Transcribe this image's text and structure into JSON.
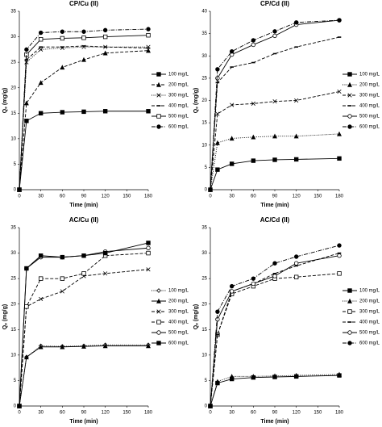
{
  "chart_data": [
    {
      "type": "line",
      "title": "CP/Cu (II)",
      "x_label": "Time (min)",
      "y_label": "Qₑ (mg/g)",
      "x": [
        0,
        10,
        30,
        60,
        90,
        120,
        180
      ],
      "xlim": [
        0,
        180
      ],
      "xticks": [
        0,
        30,
        60,
        90,
        120,
        150,
        180
      ],
      "ylim": [
        0,
        35
      ],
      "yticks": [
        0,
        5,
        10,
        15,
        20,
        25,
        30,
        35
      ],
      "legend": "right",
      "series": [
        {
          "name": "100 mg/L",
          "color": "#000000",
          "marker": "square",
          "dash": "solid",
          "values": [
            0,
            13.5,
            15,
            15.2,
            15.3,
            15.4,
            15.4
          ]
        },
        {
          "name": "200 mg/L",
          "color": "#000000",
          "marker": "triangle",
          "dash": "dashed",
          "values": [
            0,
            17,
            21,
            24,
            25.5,
            26.8,
            27.3
          ]
        },
        {
          "name": "300 mg/L",
          "color": "#000000",
          "marker": "x",
          "dash": "dotted",
          "values": [
            0,
            25,
            27.5,
            27.8,
            28,
            28,
            28
          ]
        },
        {
          "name": "400 mg/L",
          "color": "#000000",
          "marker": "dash",
          "dash": "dashed",
          "values": [
            0,
            25.5,
            28,
            28,
            28.2,
            28,
            27.8
          ]
        },
        {
          "name": "500 mg/L",
          "color": "#000000",
          "marker": "square-open",
          "dash": "solid",
          "values": [
            0,
            26.5,
            29.5,
            29.7,
            29.8,
            30,
            30.3
          ]
        },
        {
          "name": "600 mg/L",
          "color": "#000000",
          "marker": "circle-filled",
          "dash": "dashdot",
          "values": [
            0,
            27.5,
            30.8,
            31,
            31,
            31.3,
            31.5
          ]
        }
      ]
    },
    {
      "type": "line",
      "title": "CP/Cd (II)",
      "x_label": "Time (min)",
      "y_label": "Qₑ (mg/g)",
      "x": [
        0,
        10,
        30,
        60,
        90,
        120,
        180
      ],
      "xlim": [
        0,
        180
      ],
      "xticks": [
        0,
        30,
        60,
        90,
        120,
        150,
        180
      ],
      "ylim": [
        0,
        40
      ],
      "yticks": [
        0,
        5,
        10,
        15,
        20,
        25,
        30,
        35,
        40
      ],
      "legend": "right",
      "series": [
        {
          "name": "100 mg/L",
          "color": "#000000",
          "marker": "square",
          "dash": "solid",
          "values": [
            0,
            4.5,
            5.8,
            6.5,
            6.7,
            6.8,
            7
          ]
        },
        {
          "name": "200 mg/L",
          "color": "#000000",
          "marker": "triangle",
          "dash": "dotted",
          "values": [
            0,
            10.5,
            11.5,
            11.8,
            12,
            12,
            12.5
          ]
        },
        {
          "name": "300 mg/L",
          "color": "#000000",
          "marker": "x",
          "dash": "dashed",
          "values": [
            0,
            17,
            19,
            19.3,
            19.8,
            20,
            22
          ]
        },
        {
          "name": "400 mg/L",
          "color": "#000000",
          "marker": "dash",
          "dash": "dashed",
          "values": [
            0,
            24,
            27.5,
            28.5,
            30.5,
            32,
            34.2
          ]
        },
        {
          "name": "500 mg/L",
          "color": "#000000",
          "marker": "circle-open",
          "dash": "solid",
          "values": [
            0,
            25,
            30.3,
            32.5,
            34.5,
            37,
            38
          ]
        },
        {
          "name": "600 mg/L",
          "color": "#000000",
          "marker": "circle-filled",
          "dash": "dashdot",
          "values": [
            0,
            27,
            31,
            33.5,
            35.5,
            37.5,
            38
          ]
        }
      ]
    },
    {
      "type": "line",
      "title": "AC/Cu (II)",
      "x_label": "Time (min)",
      "y_label": "Qₑ (mg/g)",
      "x": [
        0,
        10,
        30,
        60,
        90,
        120,
        180
      ],
      "xlim": [
        0,
        180
      ],
      "xticks": [
        0,
        30,
        60,
        90,
        120,
        150,
        180
      ],
      "ylim": [
        0,
        35
      ],
      "yticks": [
        0,
        5,
        10,
        15,
        20,
        25,
        30,
        35
      ],
      "legend": "right",
      "series": [
        {
          "name": "100 mg/L",
          "color": "#000000",
          "marker": "diamond-open",
          "dash": "dotted",
          "values": [
            0,
            9.6,
            11.8,
            11.7,
            11.8,
            12,
            12
          ]
        },
        {
          "name": "200 mg/L",
          "color": "#000000",
          "marker": "triangle",
          "dash": "solid",
          "values": [
            0,
            9.6,
            11.6,
            11.6,
            11.7,
            11.8,
            11.8
          ]
        },
        {
          "name": "300 mg/L",
          "color": "#000000",
          "marker": "x",
          "dash": "dashed",
          "values": [
            0,
            19.5,
            21,
            22.5,
            25.5,
            26,
            26.8
          ]
        },
        {
          "name": "400 mg/L",
          "color": "#000000",
          "marker": "square-open",
          "dash": "dashed",
          "values": [
            0,
            19.5,
            25,
            25,
            26,
            29.5,
            30
          ]
        },
        {
          "name": "500 mg/L",
          "color": "#000000",
          "marker": "circle-open",
          "dash": "solid",
          "values": [
            0,
            27,
            29.2,
            29.2,
            29.5,
            30.3,
            31
          ]
        },
        {
          "name": "600 mg/L",
          "color": "#000000",
          "marker": "square",
          "dash": "solid",
          "values": [
            0,
            27,
            29.5,
            29.2,
            29.5,
            30,
            32
          ]
        }
      ]
    },
    {
      "type": "line",
      "title": "AC/Cd (II)",
      "x_label": "Time (min)",
      "y_label": "Qₑ (mg/g)",
      "x": [
        0,
        10,
        30,
        60,
        90,
        120,
        180
      ],
      "xlim": [
        0,
        180
      ],
      "xticks": [
        0,
        30,
        60,
        90,
        120,
        150,
        180
      ],
      "ylim": [
        0,
        35
      ],
      "yticks": [
        0,
        5,
        10,
        15,
        20,
        25,
        30,
        35
      ],
      "legend": "right",
      "series": [
        {
          "name": "100 mg/L",
          "color": "#000000",
          "marker": "square",
          "dash": "solid",
          "values": [
            0,
            4.5,
            5.3,
            5.6,
            5.7,
            5.8,
            6
          ]
        },
        {
          "name": "200 mg/L",
          "color": "#000000",
          "marker": "triangle",
          "dash": "dotted",
          "values": [
            0,
            4.8,
            5.8,
            5.8,
            5.9,
            6,
            6.2
          ]
        },
        {
          "name": "300 mg/L",
          "color": "#000000",
          "marker": "square-open",
          "dash": "dashed",
          "values": [
            0,
            14,
            22,
            23.5,
            25,
            25.3,
            26
          ]
        },
        {
          "name": "400 mg/L",
          "color": "#000000",
          "marker": "dash",
          "dash": "dashed",
          "values": [
            0,
            14,
            22.5,
            24,
            26,
            27.5,
            30
          ]
        },
        {
          "name": "500 mg/L",
          "color": "#000000",
          "marker": "circle-open",
          "dash": "solid",
          "values": [
            0,
            17,
            22.5,
            24,
            25.5,
            28,
            29.5
          ]
        },
        {
          "name": "600 mg/L",
          "color": "#000000",
          "marker": "circle-filled",
          "dash": "dashdot",
          "values": [
            0,
            18.5,
            23.5,
            25,
            28,
            29.3,
            31.5
          ]
        }
      ]
    }
  ]
}
